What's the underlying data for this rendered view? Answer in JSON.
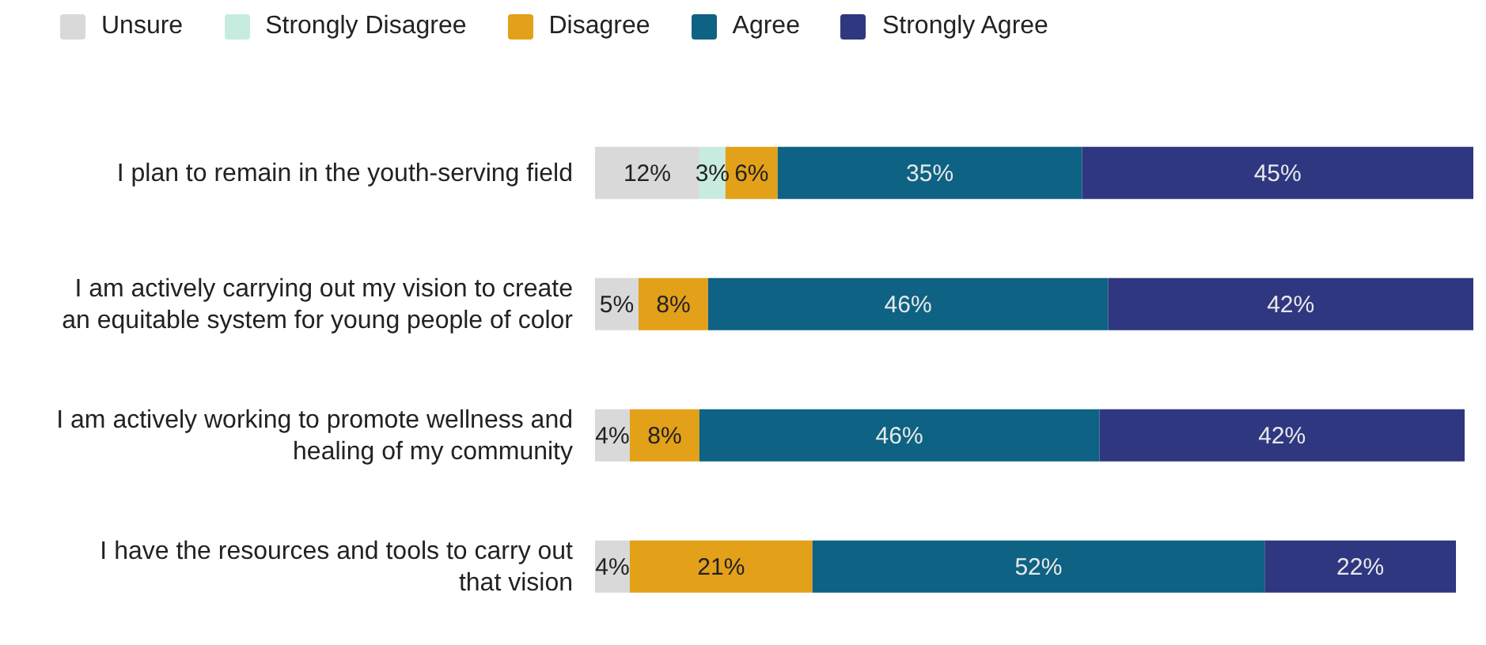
{
  "chart_data": {
    "type": "bar",
    "orientation": "horizontal",
    "stacked": true,
    "tick_labels": "y",
    "legend": "top left",
    "categories": [
      "I plan to remain in the youth-serving field",
      "I am actively carrying out my vision to create an equitable system for young people of color",
      "I am actively working to promote wellness and healing of my community",
      "I have the resources and tools to carry out that vision"
    ],
    "series": [
      {
        "name": "Unsure",
        "color": "#d9d9d9",
        "values": [
          12,
          5,
          4,
          4
        ],
        "value_labels": [
          "12%",
          "5%",
          "4%",
          "4%"
        ]
      },
      {
        "name": "Strongly Disagree",
        "color": "#c8ebe0",
        "values": [
          3,
          null,
          null,
          null
        ],
        "value_labels": [
          "3%",
          null,
          null,
          null
        ]
      },
      {
        "name": "Disagree",
        "color": "#e3a019",
        "values": [
          6,
          8,
          8,
          21
        ],
        "value_labels": [
          "6%",
          "8%",
          "8%",
          "21%"
        ]
      },
      {
        "name": "Agree",
        "color": "#0e6283",
        "values": [
          35,
          46,
          46,
          52
        ],
        "value_labels": [
          "35%",
          "46%",
          "46%",
          "52%"
        ]
      },
      {
        "name": "Strongly Agree",
        "color": "#2e3780",
        "values": [
          45,
          42,
          42,
          22
        ],
        "value_labels": [
          "45%",
          "42%",
          "42%",
          "22%"
        ]
      }
    ]
  }
}
